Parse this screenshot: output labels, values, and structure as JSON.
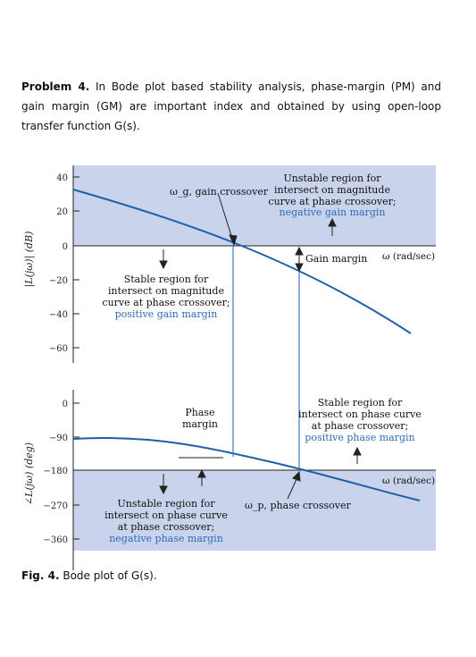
{
  "problem": {
    "label": "Problem 4.",
    "text": " In Bode plot based stability analysis, phase-margin (PM) and gain margin (GM) are important index and obtained by using open-loop transfer function G(s)."
  },
  "figure": {
    "magnitude": {
      "ylabel": "|L(jω)| (dB)",
      "ticks": [
        "40",
        "20",
        "0",
        "−20",
        "−40",
        "−60"
      ],
      "unstable_note": [
        "Unstable region for",
        "intersect on magnitude",
        "curve at phase crossover;"
      ],
      "unstable_highlight": "negative gain margin",
      "stable_note": [
        "Stable region for",
        "intersect on magnitude",
        "curve at phase crossover;"
      ],
      "stable_highlight": "positive gain margin",
      "gain_crossover_label": "ω_g, gain crossover",
      "gain_margin_label": "Gain margin",
      "omega_label": "ω (rad/sec)"
    },
    "phase": {
      "ylabel": "∠L(jω) (deg)",
      "ticks": [
        "0",
        "−90",
        "−180",
        "−270",
        "−360"
      ],
      "stable_note": [
        "Stable region for",
        "intersect on phase curve",
        "at phase crossover;"
      ],
      "stable_highlight": "positive phase margin",
      "unstable_note": [
        "Unstable region for",
        "intersect on phase curve",
        "at phase crossover;"
      ],
      "unstable_highlight": "negative phase margin",
      "phase_margin_label": [
        "Phase",
        "margin"
      ],
      "phase_crossover_label": "ω_p, phase crossover",
      "omega_label": "ω (rad/sec)"
    },
    "colors": {
      "region": "#c9d3ec",
      "curve": "#1f5fa8",
      "highlight": "#2b6cb8"
    },
    "caption_label": "Fig. 4.",
    "caption_text": " Bode plot of G(s)."
  }
}
